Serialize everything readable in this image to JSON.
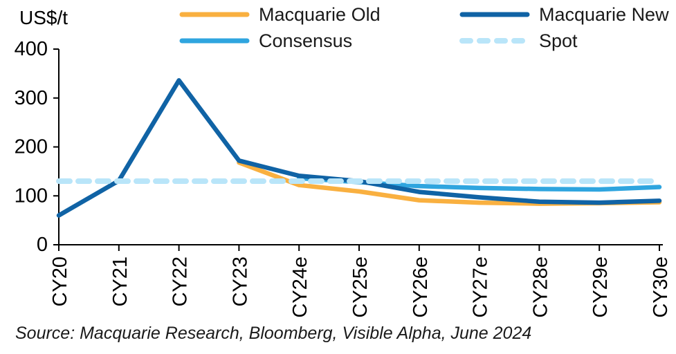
{
  "header": {
    "unit_label": "US$/t"
  },
  "legend": {
    "items": [
      {
        "label": "Macquarie Old",
        "color": "#F9B040",
        "style": "solid"
      },
      {
        "label": "Macquarie New",
        "color": "#1063A5",
        "style": "solid"
      },
      {
        "label": "Consensus",
        "color": "#2FA5DF",
        "style": "solid"
      },
      {
        "label": "Spot",
        "color": "#B9E5F9",
        "style": "dashed"
      }
    ]
  },
  "source": "Source: Macquarie Research, Bloomberg, Visible Alpha, June 2024",
  "chart_data": {
    "type": "line",
    "unit": "US$/t",
    "categories": [
      "CY20",
      "CY21",
      "CY22",
      "CY23",
      "CY24e",
      "CY25e",
      "CY26e",
      "CY27e",
      "CY28e",
      "CY29e",
      "CY30e"
    ],
    "series": [
      {
        "name": "Macquarie Old",
        "color": "#F9B040",
        "style": "solid",
        "values": [
          null,
          null,
          null,
          168,
          122,
          109,
          91,
          86,
          84,
          85,
          87
        ]
      },
      {
        "name": "Macquarie New",
        "color": "#1063A5",
        "style": "solid",
        "values": [
          60,
          131,
          336,
          172,
          141,
          130,
          108,
          97,
          88,
          86,
          90
        ]
      },
      {
        "name": "Consensus",
        "color": "#2FA5DF",
        "style": "solid",
        "values": [
          null,
          null,
          null,
          null,
          136,
          128,
          120,
          116,
          114,
          113,
          118
        ]
      },
      {
        "name": "Spot",
        "color": "#B9E5F9",
        "style": "dashed",
        "values": [
          130,
          130,
          130,
          130,
          130,
          130,
          130,
          130,
          130,
          130,
          130
        ]
      }
    ],
    "ylim": [
      0,
      400
    ],
    "yticks": [
      0,
      100,
      200,
      300,
      400
    ],
    "grid": false,
    "legend_position": "top",
    "x_tick_label_rotation": -90
  }
}
